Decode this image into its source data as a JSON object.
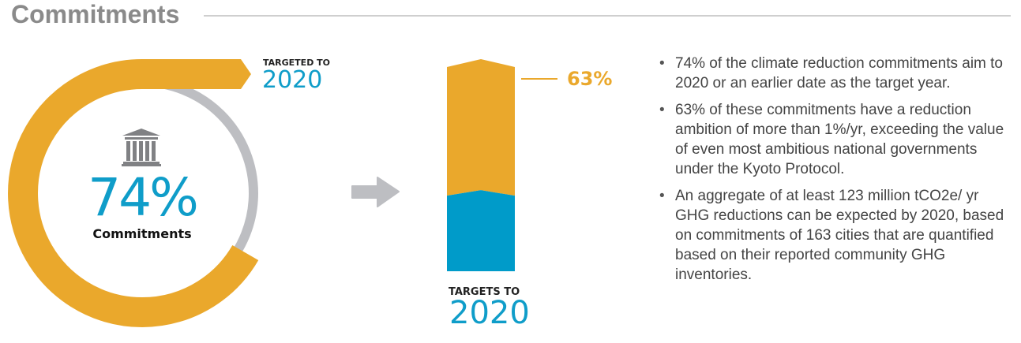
{
  "header": {
    "title": "Commitments"
  },
  "colors": {
    "gold": "#eaa82c",
    "blue": "#009bc9",
    "gray": "#bdbec2",
    "icon": "#808184"
  },
  "icons": {
    "center": "government-building-icon",
    "arrow": "arrow-right-icon"
  },
  "chart_data": [
    {
      "type": "pie",
      "variant": "donut",
      "value": 74,
      "label": "74%",
      "caption": "Commitments",
      "annotation_top": "TARGETED TO",
      "annotation_year": "2020"
    },
    {
      "type": "bar",
      "variant": "stacked",
      "values": [
        37,
        63
      ],
      "highlight_label": "63%",
      "caption_top": "TARGETS TO",
      "caption_year": "2020"
    }
  ],
  "bullets": [
    "74% of the climate reduction commitments aim to 2020 or an earlier date as the target year.",
    "63% of these commitments have a reduction ambition of more than 1%/yr, exceeding the value of even most ambitious national governments under the Kyoto Protocol.",
    "An aggregate of at least 123 million tCO2e/ yr GHG reductions can be expected by 2020, based on commitments of 163 cities that are quantified based on their reported community GHG inventories."
  ]
}
